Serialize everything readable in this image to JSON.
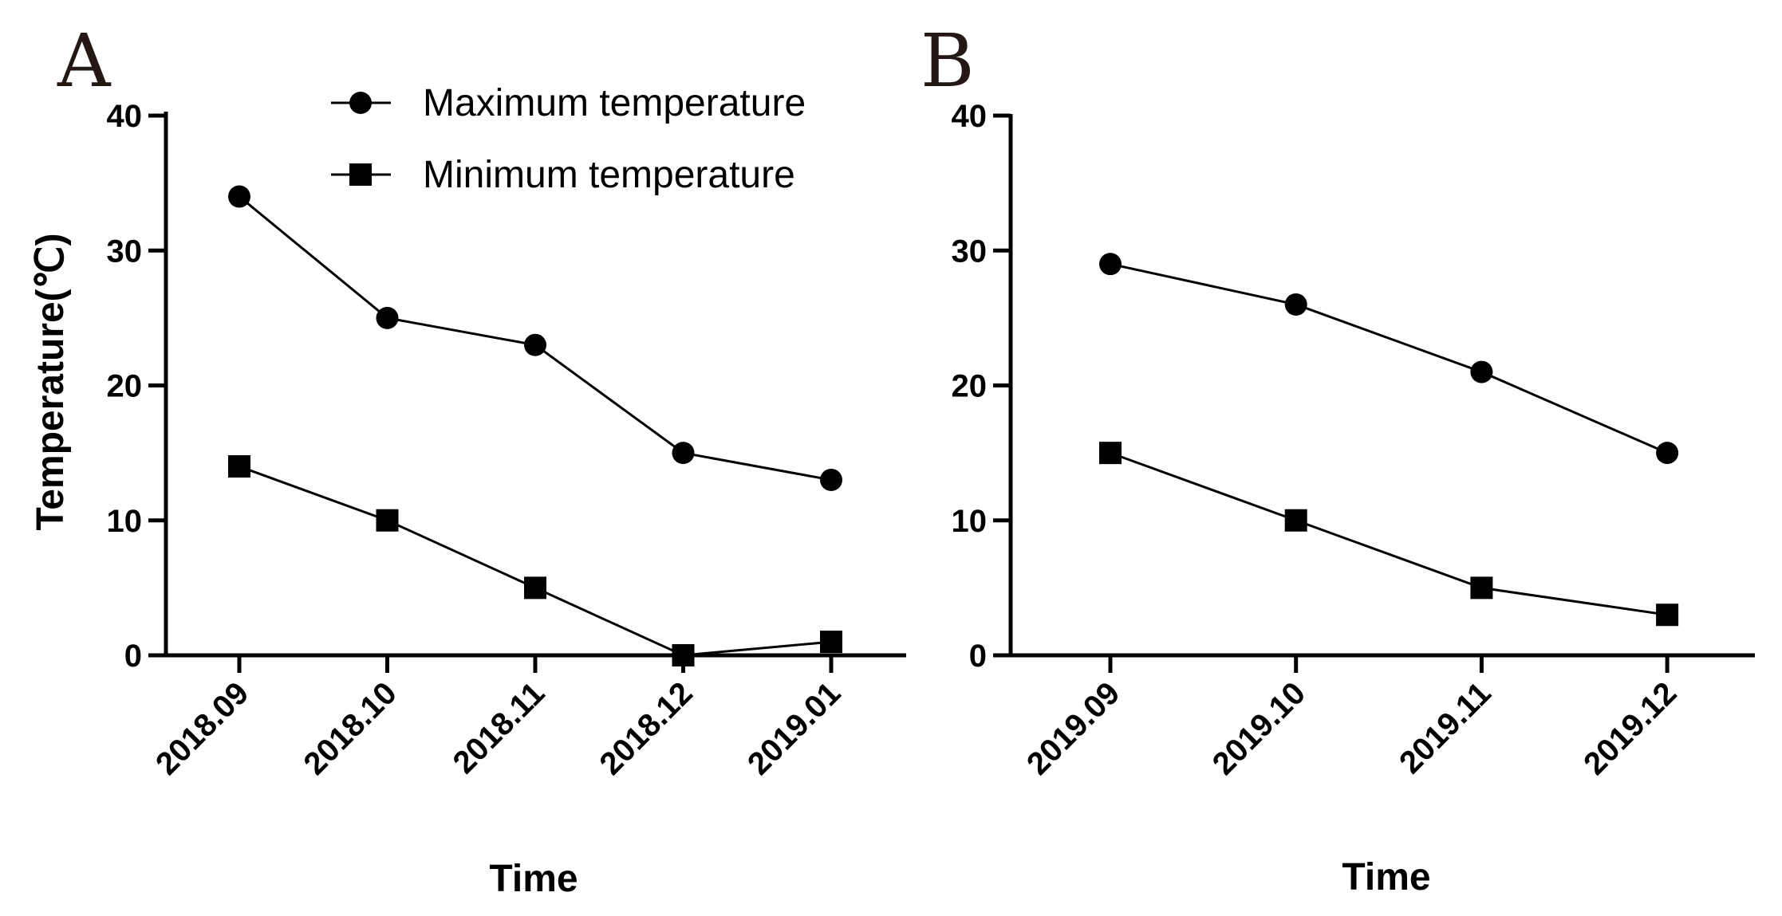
{
  "legend": {
    "max_label": "Maximum temperature",
    "min_label": "Minimum temperature"
  },
  "chart_data": [
    {
      "panel": "A",
      "type": "line",
      "xlabel": "Time",
      "ylabel": "Temperature(℃)",
      "ylim": [
        0,
        40
      ],
      "yticks": [
        0,
        10,
        20,
        30,
        40
      ],
      "categories": [
        "2018.09",
        "2018.10",
        "2018.11",
        "2018.12",
        "2019.01"
      ],
      "series": [
        {
          "name": "Maximum temperature",
          "marker": "circle",
          "values": [
            34,
            25,
            23,
            15,
            13
          ]
        },
        {
          "name": "Minimum temperature",
          "marker": "square",
          "values": [
            14,
            10,
            5,
            0,
            1
          ]
        }
      ]
    },
    {
      "panel": "B",
      "type": "line",
      "xlabel": "Time",
      "ylabel": "",
      "ylim": [
        0,
        40
      ],
      "yticks": [
        0,
        10,
        20,
        30,
        40
      ],
      "categories": [
        "2019.09",
        "2019.10",
        "2019.11",
        "2019.12"
      ],
      "series": [
        {
          "name": "Maximum temperature",
          "marker": "circle",
          "values": [
            29,
            26,
            21,
            15
          ]
        },
        {
          "name": "Minimum temperature",
          "marker": "square",
          "values": [
            15,
            10,
            5,
            3
          ]
        }
      ]
    }
  ]
}
